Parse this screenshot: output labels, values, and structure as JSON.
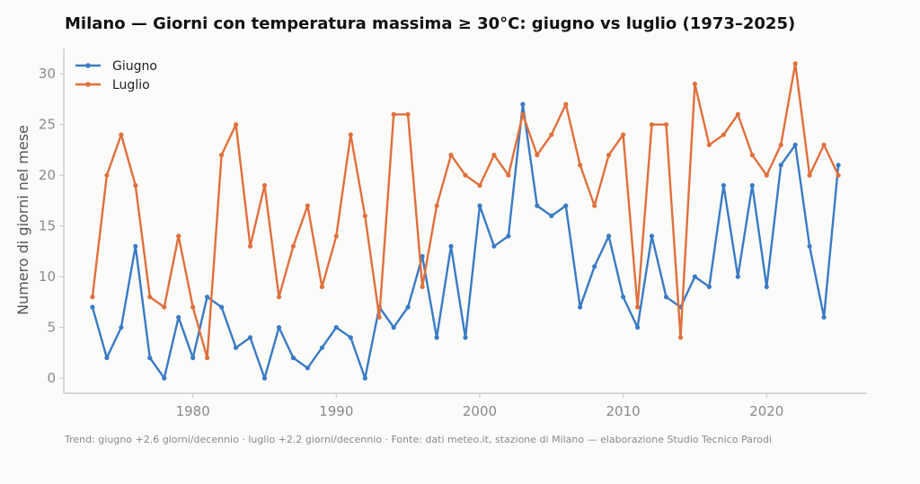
{
  "chart_data": {
    "type": "line",
    "title": "Milano — Giorni con temperatura massima ≥ 30°C: giugno vs luglio (1973–2025)",
    "xlabel": "",
    "ylabel": "Numero di giorni nel mese",
    "xlim": [
      1971,
      2027
    ],
    "ylim": [
      -1.5,
      32.5
    ],
    "xticks": [
      1980,
      1990,
      2000,
      2010,
      2020
    ],
    "yticks": [
      0,
      5,
      10,
      15,
      20,
      25,
      30
    ],
    "grid": false,
    "legend_position": "top-left",
    "x": [
      1973,
      1974,
      1975,
      1976,
      1977,
      1978,
      1979,
      1980,
      1981,
      1982,
      1983,
      1984,
      1985,
      1986,
      1987,
      1988,
      1989,
      1990,
      1991,
      1992,
      1993,
      1994,
      1995,
      1996,
      1997,
      1998,
      1999,
      2000,
      2001,
      2002,
      2003,
      2004,
      2005,
      2006,
      2007,
      2008,
      2009,
      2010,
      2011,
      2012,
      2013,
      2014,
      2015,
      2016,
      2017,
      2018,
      2019,
      2020,
      2021,
      2022,
      2023,
      2024,
      2025
    ],
    "series": [
      {
        "name": "Giugno",
        "color": "#3a7bc4",
        "values": [
          7,
          2,
          5,
          13,
          2,
          0,
          6,
          2,
          8,
          7,
          3,
          4,
          0,
          5,
          2,
          1,
          3,
          5,
          4,
          0,
          7,
          5,
          7,
          12,
          4,
          13,
          4,
          17,
          13,
          14,
          27,
          17,
          16,
          17,
          7,
          11,
          14,
          8,
          5,
          14,
          8,
          7,
          10,
          9,
          19,
          10,
          19,
          9,
          21,
          23,
          13,
          6,
          21
        ]
      },
      {
        "name": "Luglio",
        "color": "#e0703c",
        "values": [
          8,
          20,
          24,
          19,
          8,
          7,
          14,
          7,
          2,
          22,
          25,
          13,
          19,
          8,
          13,
          17,
          9,
          14,
          24,
          16,
          6,
          26,
          26,
          9,
          17,
          22,
          20,
          19,
          22,
          20,
          26,
          22,
          24,
          27,
          21,
          17,
          22,
          24,
          7,
          25,
          25,
          4,
          29,
          23,
          24,
          26,
          22,
          20,
          23,
          31,
          20,
          23,
          20
        ]
      }
    ],
    "footer": "Trend: giugno +2.6 giorni/decennio · luglio +2.2 giorni/decennio · Fonte: dati meteo.it, stazione di Milano — elaborazione Studio Tecnico Parodi"
  }
}
